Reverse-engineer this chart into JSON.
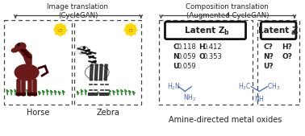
{
  "bg_color": "#ffffff",
  "title_left": "Image translation\n(CycleGAN)",
  "title_right": "Composition translation\n(Augmented CycleGAN)",
  "label_horse": "Horse",
  "label_zebra": "Zebra",
  "latent_b_rows": [
    [
      "C",
      "0.118",
      "H",
      "0.412"
    ],
    [
      "N",
      "0.059",
      "O",
      "0.353"
    ],
    [
      "U",
      "0.059",
      "",
      ""
    ]
  ],
  "latent_a_rows": [
    [
      "C",
      "?",
      "H",
      "?"
    ],
    [
      "N",
      "?",
      "O",
      "?"
    ],
    [
      "U",
      "?",
      "",
      ""
    ]
  ],
  "bottom_label": "Amine-directed metal oxides",
  "text_color": "#222222",
  "blue_color": "#4466bb",
  "sun_color": "#FFD700",
  "horse_body_color": "#6B1A1A",
  "horse_dark_color": "#3D0000",
  "zebra_stripe_color": "#111111",
  "grass_color": "#2d8a2d",
  "dashed_color": "#444444",
  "latent_box_color": "#111111"
}
